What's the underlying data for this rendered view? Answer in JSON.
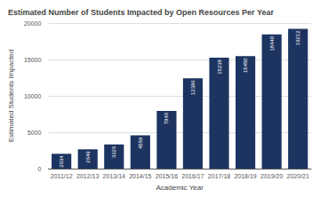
{
  "chart_data": {
    "type": "bar",
    "title": "Estimated Number of Students Impacted by Open Resources Per Year",
    "xlabel": "Academic Year",
    "ylabel": "Estimated Students Impacted",
    "categories": [
      "2011/12",
      "2012/13",
      "2013/14",
      "2014/15",
      "2015/16",
      "2016/17",
      "2017/18",
      "2018/19",
      "2019/20",
      "2020/21"
    ],
    "values": [
      2034,
      2649,
      3326,
      4559,
      7940,
      12396,
      15238,
      15450,
      18440,
      19212
    ],
    "color": "#1d3461",
    "ylim": [
      0,
      20000
    ],
    "yticks": [
      0,
      5000,
      10000,
      15000,
      20000
    ],
    "grid": true,
    "data_labels": true
  }
}
